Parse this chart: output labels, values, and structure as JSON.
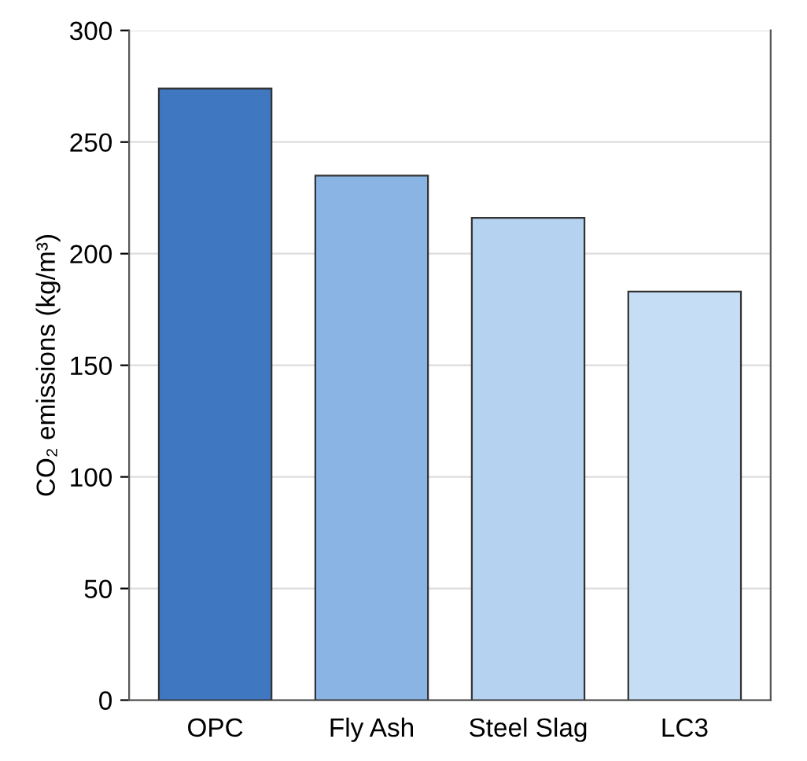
{
  "chart_data": {
    "type": "bar",
    "ylabel": "CO₂ emissions (kg/m³)",
    "categories": [
      "OPC",
      "Fly Ash",
      "Steel Slag",
      "LC3"
    ],
    "values": [
      274,
      235,
      216,
      183
    ],
    "colors": [
      "#3f78c0",
      "#8ab4e4",
      "#b5d3f0",
      "#c6def5"
    ],
    "ylim": [
      0,
      300
    ],
    "yticks": [
      0,
      50,
      100,
      150,
      200,
      250,
      300
    ],
    "grid": "y"
  }
}
